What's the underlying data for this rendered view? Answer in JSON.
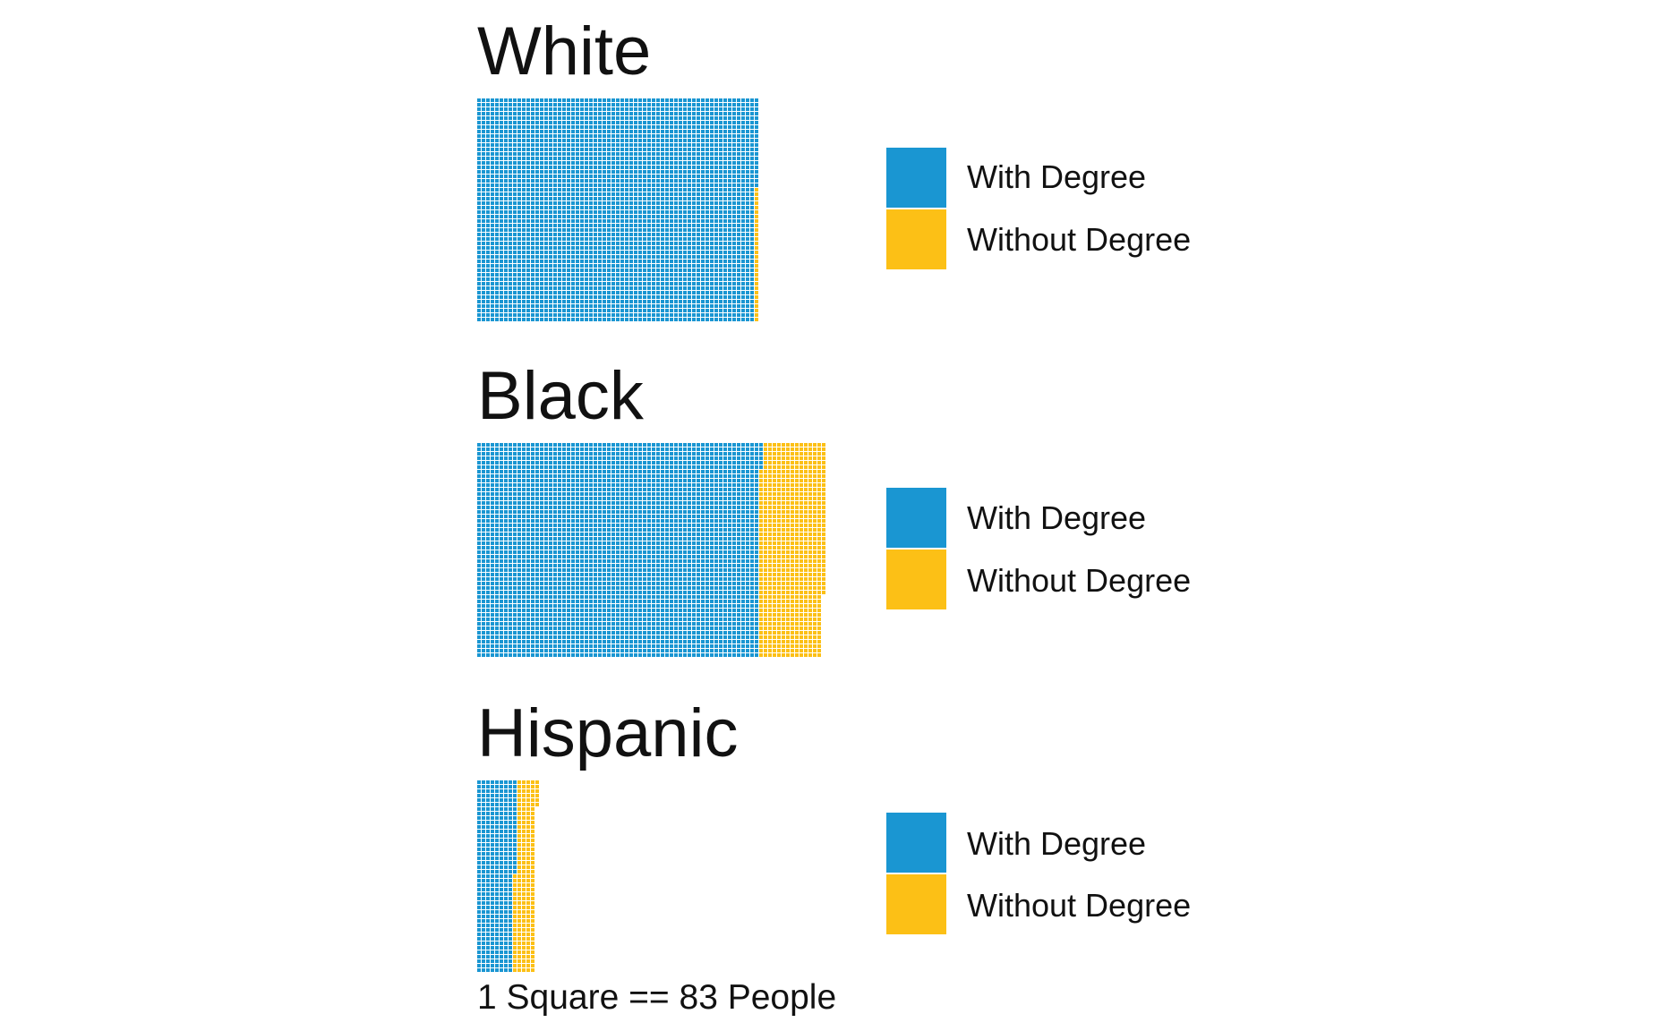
{
  "chart_data": {
    "type": "waffle",
    "unit_label": "1 Square == 83 People",
    "colors": {
      "with_degree": "#1a96d2",
      "without_degree": "#fcc016"
    },
    "legend_labels": {
      "with_degree": "With Degree",
      "without_degree": "Without Degree"
    },
    "panels": [
      {
        "title": "White",
        "rows": 50,
        "with_degree_squares": 3120,
        "without_degree_squares": 30
      },
      {
        "title": "Black",
        "rows": 48,
        "with_degree_squares": 3030,
        "without_degree_squares": 700
      },
      {
        "title": "Hispanic",
        "rows": 43,
        "with_degree_squares": 365,
        "without_degree_squares": 200
      }
    ]
  }
}
